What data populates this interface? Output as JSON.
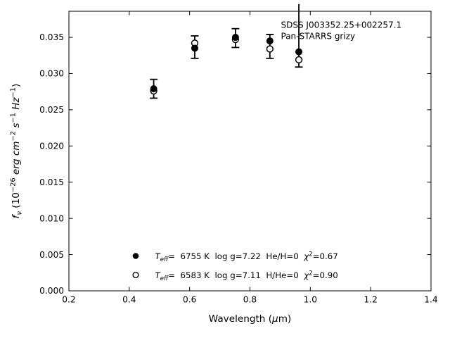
{
  "figure": {
    "background": "#ffffff",
    "foreground": "#000000"
  },
  "chart_data": {
    "type": "scatter",
    "annotation": [
      "SDSS J003352.25+002257.1",
      "Pan-STARRS grizy"
    ],
    "xlabel_text": "Wavelength (μm)",
    "ylabel_text": "fν (10⁻²⁶ erg cm⁻² s⁻¹ Hz⁻¹)",
    "xlabel_segments": [
      {
        "t": "Wavelength ("
      },
      {
        "t": "μ",
        "i": true
      },
      {
        "t": "m)"
      }
    ],
    "ylabel_segments": [
      {
        "t": "f",
        "i": true
      },
      {
        "t": "ν",
        "i": true,
        "sub": true
      },
      {
        "t": " (10"
      },
      {
        "t": "−26",
        "sup": true
      },
      {
        "t": " "
      },
      {
        "t": "erg",
        "i": true
      },
      {
        "t": " "
      },
      {
        "t": "cm",
        "i": true
      },
      {
        "t": "−2",
        "sup": true
      },
      {
        "t": " "
      },
      {
        "t": "s",
        "i": true
      },
      {
        "t": "−1",
        "sup": true
      },
      {
        "t": " "
      },
      {
        "t": "Hz",
        "i": true
      },
      {
        "t": "−1",
        "sup": true
      },
      {
        "t": ")"
      }
    ],
    "xlim": [
      0.2,
      1.4
    ],
    "ylim": [
      0.0,
      0.0386
    ],
    "xticks": [
      0.2,
      0.4,
      0.6,
      0.8,
      1.0,
      1.2,
      1.4
    ],
    "yticks": [
      0.0,
      0.005,
      0.01,
      0.015,
      0.02,
      0.025,
      0.03,
      0.035
    ],
    "grid": false,
    "tick_direction": "in",
    "ticks_all_sides": true,
    "legend_position": "lower center-left",
    "series": [
      {
        "marker": "filled-circle",
        "points": [
          [
            0.481,
            0.0279
          ],
          [
            0.617,
            0.0335
          ],
          [
            0.752,
            0.035
          ],
          [
            0.866,
            0.0345
          ],
          [
            0.962,
            0.033
          ]
        ]
      },
      {
        "marker": "open-circle",
        "points": [
          [
            0.481,
            0.0276
          ],
          [
            0.617,
            0.0342
          ],
          [
            0.752,
            0.0347
          ],
          [
            0.866,
            0.0334
          ],
          [
            0.962,
            0.0319
          ]
        ]
      }
    ],
    "error_bars": [
      {
        "x": 0.481,
        "ylow": 0.0266,
        "yhigh": 0.0292,
        "top_cap": true
      },
      {
        "x": 0.617,
        "ylow": 0.0321,
        "yhigh": 0.0352,
        "top_cap": true
      },
      {
        "x": 0.752,
        "ylow": 0.0336,
        "yhigh": 0.0362,
        "top_cap": true
      },
      {
        "x": 0.866,
        "ylow": 0.0321,
        "yhigh": 0.0354,
        "top_cap": true
      },
      {
        "x": 0.962,
        "ylow": 0.0309,
        "yhigh": 0.0396,
        "top_cap": false
      }
    ],
    "legend": [
      {
        "marker": "filled-circle",
        "label_text": "Teff=  6755 K  log g=7.22  He/H=0  χ²=0.67",
        "segments": [
          {
            "t": "T",
            "i": true
          },
          {
            "t": "eff",
            "i": true,
            "sub": true
          },
          {
            "t": "=  6755 K  log g=7.22  He/H=0  "
          },
          {
            "t": "χ",
            "i": true
          },
          {
            "t": "2",
            "sup": true
          },
          {
            "t": "=0.67"
          }
        ]
      },
      {
        "marker": "open-circle",
        "label_text": "Teff=  6583 K  log g=7.11  H/He=0  χ²=0.90",
        "segments": [
          {
            "t": "T",
            "i": true
          },
          {
            "t": "eff",
            "i": true,
            "sub": true
          },
          {
            "t": "=  6583 K  log g=7.11  H/He=0  "
          },
          {
            "t": "χ",
            "i": true
          },
          {
            "t": "2",
            "sup": true
          },
          {
            "t": "=0.90"
          }
        ]
      }
    ]
  }
}
